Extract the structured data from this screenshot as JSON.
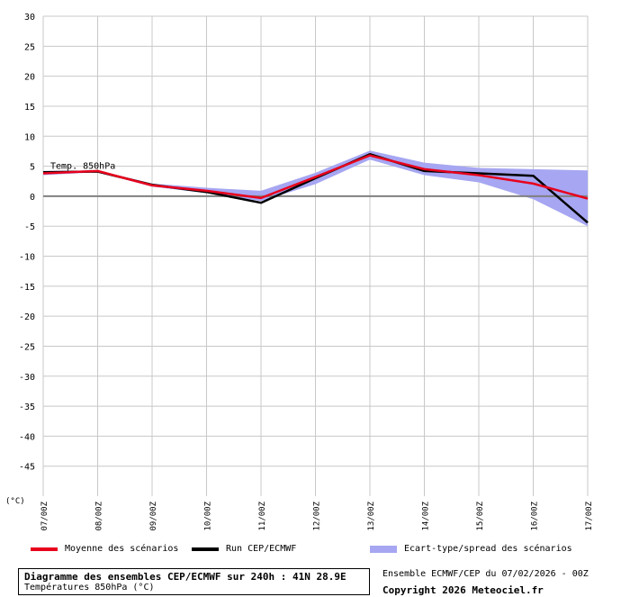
{
  "chart_data": {
    "type": "line",
    "categories": [
      "07/00Z",
      "08/00Z",
      "09/00Z",
      "10/00Z",
      "11/00Z",
      "12/00Z",
      "13/00Z",
      "14/00Z",
      "15/00Z",
      "16/00Z",
      "17/00Z"
    ],
    "y_unit": "(°C)",
    "ylim": [
      -50,
      30
    ],
    "yticks": [
      30,
      25,
      20,
      15,
      10,
      5,
      0,
      -5,
      -10,
      -15,
      -20,
      -25,
      -30,
      -35,
      -40,
      -45
    ],
    "grid": true,
    "annotation": "Temp. 850hPa",
    "series": [
      {
        "name": "Moyenne des scénarios",
        "color": "#e8001c",
        "values": [
          3.8,
          4.2,
          1.8,
          0.9,
          -0.3,
          3.2,
          6.8,
          4.5,
          3.5,
          2.1,
          -0.4
        ]
      },
      {
        "name": "Run CEP/ECMWF",
        "color": "#000000",
        "values": [
          4.0,
          4.1,
          1.9,
          0.7,
          -1.1,
          3.0,
          7.0,
          4.2,
          3.8,
          3.4,
          -4.4
        ]
      }
    ],
    "spread": {
      "name": "Ecart-type/spread des scénarios",
      "color": "#a6a6f2",
      "upper": [
        4.2,
        4.3,
        2.1,
        1.4,
        0.9,
        3.9,
        7.6,
        5.6,
        4.7,
        4.5,
        4.3
      ],
      "lower": [
        3.5,
        4.0,
        1.6,
        0.5,
        -0.8,
        2.0,
        6.1,
        3.5,
        2.3,
        -0.5,
        -5.0
      ]
    }
  },
  "legend": {
    "mean_label": "Moyenne des scénarios",
    "run_label": "Run CEP/ECMWF",
    "spread_label": "Ecart-type/spread des scénarios"
  },
  "footer": {
    "title": "Diagramme des ensembles CEP/ECMWF sur 240h : 41N 28.9E",
    "subtitle": "Températures 850hPa (°C)",
    "ensemble": "Ensemble ECMWF/CEP du 07/02/2026 - 00Z",
    "copyright": "Copyright 2026 Meteociel.fr"
  }
}
